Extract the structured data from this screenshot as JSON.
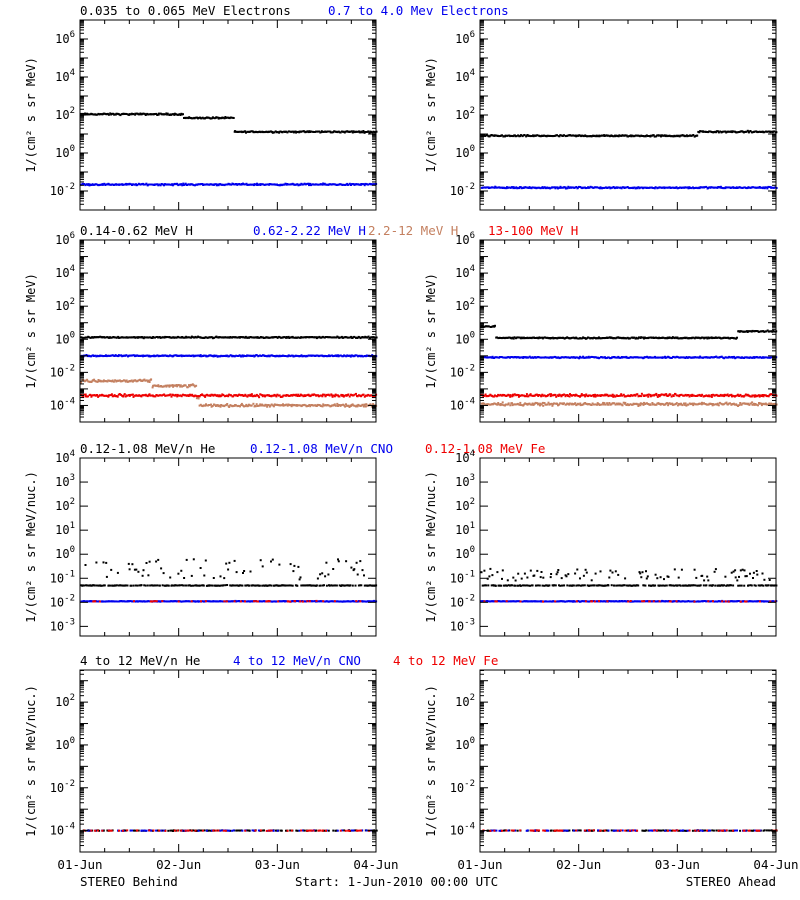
{
  "colors": {
    "black": "#000000",
    "blue": "#0000ee",
    "tan": "#c48060",
    "red": "#ee0000"
  },
  "x_tick_labels": [
    "01-Jun",
    "02-Jun",
    "03-Jun",
    "04-Jun"
  ],
  "footer": {
    "left": "STEREO Behind",
    "center": "Start:  1-Jun-2010 00:00 UTC",
    "right": "STEREO Ahead"
  },
  "rows": [
    {
      "legend": [
        {
          "text": "0.035 to 0.065 MeV Electrons",
          "color": "black"
        },
        {
          "text": "0.7 to 4.0 Mev Electrons",
          "color": "blue"
        }
      ],
      "ylabel": "1/(cm² s sr MeV)",
      "y_log_min": -3,
      "y_log_max": 7,
      "y_ticks": [
        -2,
        0,
        2,
        4,
        6
      ]
    },
    {
      "legend": [
        {
          "text": "0.14-0.62 MeV H",
          "color": "black"
        },
        {
          "text": "0.62-2.22 MeV H",
          "color": "blue"
        },
        {
          "text": "2.2-12 MeV H",
          "color": "tan"
        },
        {
          "text": "13-100 MeV H",
          "color": "red"
        }
      ],
      "ylabel": "1/(cm² s sr MeV)",
      "y_log_min": -5,
      "y_log_max": 6,
      "y_ticks": [
        -4,
        -2,
        0,
        2,
        4,
        6
      ]
    },
    {
      "legend": [
        {
          "text": "0.12-1.08 MeV/n He",
          "color": "black"
        },
        {
          "text": "0.12-1.08 MeV/n CNO",
          "color": "blue"
        },
        {
          "text": "0.12-1.08 MeV Fe",
          "color": "red"
        }
      ],
      "ylabel": "1/(cm² s sr MeV/nuc.)",
      "y_log_min": -3.4,
      "y_log_max": 4,
      "y_ticks": [
        -3,
        -2,
        -1,
        0,
        1,
        2,
        3,
        4
      ]
    },
    {
      "legend": [
        {
          "text": "4 to 12 MeV/n He",
          "color": "black"
        },
        {
          "text": "4 to 12 MeV/n CNO",
          "color": "blue"
        },
        {
          "text": "4 to 12 MeV Fe",
          "color": "red"
        }
      ],
      "ylabel": "1/(cm² s sr MeV/nuc.)",
      "y_log_min": -5,
      "y_log_max": 3.5,
      "y_ticks": [
        -4,
        -2,
        0,
        2
      ]
    }
  ],
  "chart_data": [
    {
      "type": "scatter",
      "panel": "STEREO Behind electrons",
      "xlim": [
        0,
        3
      ],
      "x_unit": "days since 1-Jun-2010",
      "yscale": "log",
      "series": [
        {
          "name": "0.035 to 0.065 MeV Electrons",
          "color": "black",
          "segments": [
            [
              0,
              1.04,
              110
            ],
            [
              1.04,
              1.55,
              70
            ],
            [
              1.55,
              3,
              13
            ]
          ]
        },
        {
          "name": "0.7 to 4.0 Mev Electrons",
          "color": "blue",
          "segments": [
            [
              0,
              3,
              0.022
            ]
          ]
        }
      ]
    },
    {
      "type": "scatter",
      "panel": "STEREO Ahead electrons",
      "xlim": [
        0,
        3
      ],
      "x_unit": "days since 1-Jun-2010",
      "yscale": "log",
      "series": [
        {
          "name": "0.035 to 0.065 MeV Electrons",
          "color": "black",
          "segments": [
            [
              0,
              2.2,
              8
            ],
            [
              2.2,
              3,
              13
            ]
          ]
        },
        {
          "name": "0.7 to 4.0 Mev Electrons",
          "color": "blue",
          "segments": [
            [
              0,
              3,
              0.015
            ]
          ]
        }
      ]
    },
    {
      "type": "scatter",
      "panel": "STEREO Behind protons",
      "xlim": [
        0,
        3
      ],
      "x_unit": "days since 1-Jun-2010",
      "yscale": "log",
      "series": [
        {
          "name": "0.14-0.62 MeV H",
          "color": "black",
          "segments": [
            [
              0,
              3,
              1.3
            ]
          ]
        },
        {
          "name": "0.62-2.22 MeV H",
          "color": "blue",
          "segments": [
            [
              0,
              3,
              0.1
            ]
          ]
        },
        {
          "name": "2.2-12 MeV H",
          "color": "tan",
          "segments": [
            [
              0,
              0.72,
              0.003
            ],
            [
              0.72,
              1.17,
              0.0015
            ],
            [
              1.17,
              1.2,
              0.0003
            ],
            [
              1.2,
              3,
              0.0001
            ]
          ]
        },
        {
          "name": "13-100 MeV H",
          "color": "red",
          "segments": [
            [
              0,
              3,
              0.0004
            ]
          ]
        }
      ]
    },
    {
      "type": "scatter",
      "panel": "STEREO Ahead protons",
      "xlim": [
        0,
        3
      ],
      "x_unit": "days since 1-Jun-2010",
      "yscale": "log",
      "series": [
        {
          "name": "0.14-0.62 MeV H",
          "color": "black",
          "segments": [
            [
              0,
              0.15,
              6
            ],
            [
              0.15,
              2.6,
              1.2
            ],
            [
              2.6,
              3,
              3
            ]
          ]
        },
        {
          "name": "0.62-2.22 MeV H",
          "color": "blue",
          "segments": [
            [
              0,
              3,
              0.08
            ]
          ]
        },
        {
          "name": "2.2-12 MeV H",
          "color": "tan",
          "segments": [
            [
              0,
              3,
              0.00012
            ]
          ]
        },
        {
          "name": "13-100 MeV H",
          "color": "red",
          "segments": [
            [
              0,
              3,
              0.0004
            ]
          ]
        }
      ]
    },
    {
      "type": "scatter",
      "panel": "STEREO Behind low-energy heavy ions",
      "xlim": [
        0,
        3
      ],
      "x_unit": "days since 1-Jun-2010",
      "yscale": "log",
      "series": [
        {
          "name": "0.12-1.08 MeV/n He",
          "color": "black",
          "segments": [
            [
              0,
              3,
              0.05
            ]
          ]
        },
        {
          "name": "0.12-1.08 MeV/n CNO",
          "color": "blue",
          "segments": [
            [
              0,
              3,
              0.011
            ]
          ]
        },
        {
          "name": "0.12-1.08 MeV Fe",
          "color": "red",
          "segments": [
            [
              0,
              3,
              0.011
            ]
          ]
        }
      ]
    },
    {
      "type": "scatter",
      "panel": "STEREO Ahead low-energy heavy ions",
      "xlim": [
        0,
        3
      ],
      "x_unit": "days since 1-Jun-2010",
      "yscale": "log",
      "series": [
        {
          "name": "0.12-1.08 MeV/n He",
          "color": "black",
          "segments": [
            [
              0,
              3,
              0.05
            ]
          ]
        },
        {
          "name": "0.12-1.08 MeV/n CNO",
          "color": "blue",
          "segments": [
            [
              0,
              3,
              0.011
            ]
          ]
        },
        {
          "name": "0.12-1.08 MeV Fe",
          "color": "red",
          "segments": [
            [
              0,
              3,
              0.011
            ]
          ]
        }
      ]
    },
    {
      "type": "scatter",
      "panel": "STEREO Behind high-energy heavy ions",
      "xlim": [
        0,
        3
      ],
      "x_unit": "days since 1-Jun-2010",
      "yscale": "log",
      "series": [
        {
          "name": "4 to 12 MeV/n He",
          "color": "black",
          "segments": [
            [
              0,
              3,
              0.0001
            ]
          ]
        },
        {
          "name": "4 to 12 MeV/n CNO",
          "color": "blue",
          "segments": [
            [
              0,
              3,
              0.0001
            ]
          ]
        },
        {
          "name": "4 to 12 MeV Fe",
          "color": "red",
          "segments": [
            [
              0,
              3,
              0.0001
            ]
          ]
        }
      ]
    },
    {
      "type": "scatter",
      "panel": "STEREO Ahead high-energy heavy ions",
      "xlim": [
        0,
        3
      ],
      "x_unit": "days since 1-Jun-2010",
      "yscale": "log",
      "series": [
        {
          "name": "4 to 12 MeV/n He",
          "color": "black",
          "segments": [
            [
              0,
              3,
              0.0001
            ]
          ]
        },
        {
          "name": "4 to 12 MeV/n CNO",
          "color": "blue",
          "segments": [
            [
              0,
              3,
              0.0001
            ]
          ]
        },
        {
          "name": "4 to 12 MeV Fe",
          "color": "red",
          "segments": [
            [
              0,
              3,
              0.0001
            ]
          ]
        }
      ]
    }
  ]
}
